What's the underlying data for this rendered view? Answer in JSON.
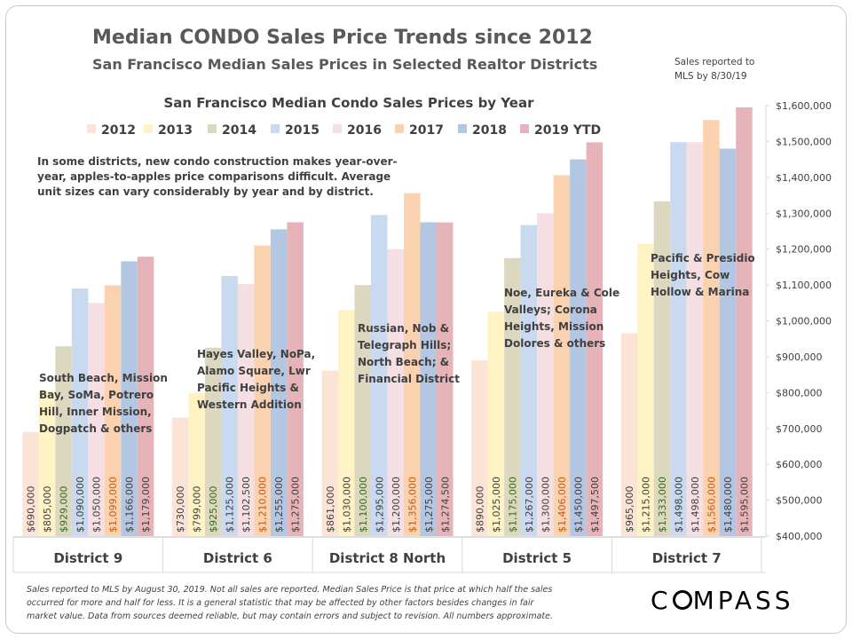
{
  "header": {
    "title": "Median CONDO Sales Price Trends since 2012",
    "subtitle": "San Francisco Median Sales Prices in Selected Realtor Districts",
    "sales_note_line1": "Sales reported to",
    "sales_note_line2": "MLS by 8/30/19"
  },
  "annotation": {
    "line1": "In some districts, new condo construction makes year-over-",
    "line2": "year, apples-to-apples price comparisons difficult. Average",
    "line3": "unit sizes can vary considerably by year and by district."
  },
  "footer": {
    "line1": "Sales reported to MLS by August 30, 2019. Not all sales are reported. Median Sales Price is that price at which half the sales",
    "line2": "occurred for more and half for less. It is a general statistic that may be affected by other factors besides changes in fair",
    "line3": "market value. Data from sources deemed reliable, but may contain errors and subject to revision.  All numbers approximate.",
    "logo": "COMPASS"
  },
  "chart_data": {
    "type": "bar",
    "title": "San Francisco Median Condo Sales Prices by Year",
    "xlabel": "",
    "ylabel": "",
    "ylim": [
      400000,
      1600000
    ],
    "ytick_step": 100000,
    "yticks": [
      "$400,000",
      "$500,000",
      "$600,000",
      "$700,000",
      "$800,000",
      "$900,000",
      "$1,000,000",
      "$1,100,000",
      "$1,200,000",
      "$1,300,000",
      "$1,400,000",
      "$1,500,000",
      "$1,600,000"
    ],
    "grid": false,
    "legend_position": "top",
    "categories": [
      "District 9",
      "District 6",
      "District 8 North",
      "District 5",
      "District 7"
    ],
    "category_descriptions": [
      [
        "South Beach, Mission",
        "Bay, SoMa, Potrero",
        "Hill, Inner Mission,",
        "Dogpatch & others"
      ],
      [
        "Hayes Valley, NoPa,",
        "Alamo Square, Lwr",
        "Pacific Heights &",
        "Western Addition"
      ],
      [
        "Russian, Nob &",
        "Telegraph Hills;",
        "North Beach; &",
        "Financial District"
      ],
      [
        "Noe, Eureka & Cole",
        "Valleys; Corona",
        "Heights, Mission",
        "Dolores & others"
      ],
      [
        "Pacific & Presidio",
        "Heights, Cow",
        "Hollow & Marina"
      ]
    ],
    "series": [
      {
        "name": "2012",
        "color": "#fbe3d6",
        "label_color": "#404040",
        "values": [
          690000,
          730000,
          861000,
          890000,
          965000
        ],
        "labels": [
          "$690,000",
          "$730,000",
          "$861,000",
          "$890,000",
          "$965,000"
        ]
      },
      {
        "name": "2013",
        "color": "#fff3c4",
        "label_color": "#404040",
        "values": [
          805000,
          799000,
          1030000,
          1025000,
          1215000
        ],
        "labels": [
          "$805,000",
          "$799,000",
          "$1,030,000",
          "$1,025,000",
          "$1,215,000"
        ]
      },
      {
        "name": "2014",
        "color": "#dcd8c0",
        "label_color": "#3a6b1e",
        "values": [
          929000,
          925000,
          1100000,
          1175000,
          1333000
        ],
        "labels": [
          "$929,000",
          "$925,000",
          "$1,100,000",
          "$1,175,000",
          "$1,333,000"
        ]
      },
      {
        "name": "2015",
        "color": "#c8d9f0",
        "label_color": "#404040",
        "values": [
          1090000,
          1125000,
          1295000,
          1267000,
          1498000
        ],
        "labels": [
          "$1,090,000",
          "$1,125,000",
          "$1,295,000",
          "$1,267,000",
          "$1,498,000"
        ]
      },
      {
        "name": "2016",
        "color": "#f5dfe2",
        "label_color": "#404040",
        "values": [
          1050000,
          1102500,
          1200000,
          1300000,
          1498000
        ],
        "labels": [
          "$1,050,000",
          "$1,102,500",
          "$1,200,000",
          "$1,300,000",
          "$1,498,000"
        ]
      },
      {
        "name": "2017",
        "color": "#fbd2b0",
        "label_color": "#c55a11",
        "values": [
          1099000,
          1210000,
          1356000,
          1406000,
          1560000
        ],
        "labels": [
          "$1,099,000",
          "$1,210,000",
          "$1,356,000",
          "$1,406,000",
          "$1,560,000"
        ]
      },
      {
        "name": "2018",
        "color": "#b4c7e2",
        "label_color": "#404040",
        "values": [
          1166000,
          1255000,
          1275000,
          1450000,
          1480000
        ],
        "labels": [
          "$1,166,000",
          "$1,255,000",
          "$1,275,000",
          "$1,450,000",
          "$1,480,000"
        ]
      },
      {
        "name": "2019 YTD",
        "color": "#e6b4b8",
        "label_color": "#404040",
        "values": [
          1179000,
          1275000,
          1274500,
          1497500,
          1595000
        ],
        "labels": [
          "$1,179,000",
          "$1,275,000",
          "$1,274,500",
          "$1,497,500",
          "$1,595,000"
        ]
      }
    ]
  }
}
